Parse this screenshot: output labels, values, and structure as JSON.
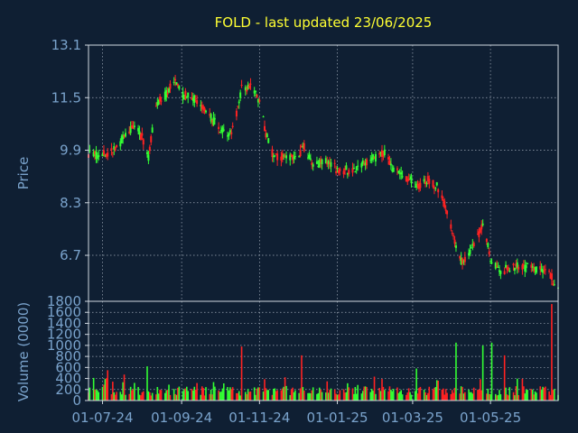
{
  "chart_data": {
    "type": "candlestick",
    "title": "FOLD - last updated 23/06/2025",
    "ylabel_price": "Price",
    "ylabel_volume": "Volume (0000)",
    "grid": true,
    "x_range": [
      "2024-06-20",
      "2025-06-23"
    ],
    "x_ticks": [
      {
        "label": "01-07-24",
        "date": "2024-07-01"
      },
      {
        "label": "01-09-24",
        "date": "2024-09-01"
      },
      {
        "label": "01-11-24",
        "date": "2024-11-01"
      },
      {
        "label": "01-01-25",
        "date": "2025-01-01"
      },
      {
        "label": "01-03-25",
        "date": "2025-03-01"
      },
      {
        "label": "01-05-25",
        "date": "2025-05-01"
      }
    ],
    "price_ylim": [
      5.3,
      13.1
    ],
    "price_ticks": [
      "13.1",
      "11.5",
      "9.9",
      "8.3",
      "6.7"
    ],
    "volume_ylim": [
      0,
      1800
    ],
    "volume_ticks": [
      "1800",
      "1600",
      "1400",
      "1200",
      "1000",
      "800",
      "600",
      "400",
      "200",
      "0"
    ],
    "up_color": "#33ff33",
    "down_color": "#ff2222",
    "price_anchors": [
      [
        "2024-06-20",
        9.8
      ],
      [
        "2024-07-01",
        9.75
      ],
      [
        "2024-07-10",
        9.9
      ],
      [
        "2024-07-20",
        10.4
      ],
      [
        "2024-07-26",
        10.6
      ],
      [
        "2024-08-01",
        10.3
      ],
      [
        "2024-08-06",
        9.7
      ],
      [
        "2024-08-12",
        11.3
      ],
      [
        "2024-08-20",
        11.6
      ],
      [
        "2024-08-26",
        12.0
      ],
      [
        "2024-09-01",
        11.6
      ],
      [
        "2024-09-10",
        11.5
      ],
      [
        "2024-09-20",
        11.1
      ],
      [
        "2024-09-30",
        10.6
      ],
      [
        "2024-10-08",
        10.4
      ],
      [
        "2024-10-12",
        10.6
      ],
      [
        "2024-10-18",
        11.8
      ],
      [
        "2024-10-26",
        11.8
      ],
      [
        "2024-11-01",
        11.4
      ],
      [
        "2024-11-06",
        10.4
      ],
      [
        "2024-11-12",
        9.7
      ],
      [
        "2024-11-20",
        9.7
      ],
      [
        "2024-12-01",
        9.75
      ],
      [
        "2024-12-06",
        10.0
      ],
      [
        "2024-12-14",
        9.4
      ],
      [
        "2024-12-24",
        9.6
      ],
      [
        "2025-01-01",
        9.3
      ],
      [
        "2025-01-08",
        9.3
      ],
      [
        "2025-01-12",
        9.2
      ],
      [
        "2025-01-20",
        9.5
      ],
      [
        "2025-02-01",
        9.7
      ],
      [
        "2025-02-08",
        9.8
      ],
      [
        "2025-02-14",
        9.3
      ],
      [
        "2025-02-28",
        9.0
      ],
      [
        "2025-03-06",
        8.8
      ],
      [
        "2025-03-14",
        9.0
      ],
      [
        "2025-03-20",
        8.8
      ],
      [
        "2025-03-24",
        8.5
      ],
      [
        "2025-03-30",
        7.8
      ],
      [
        "2025-04-04",
        6.9
      ],
      [
        "2025-04-08",
        6.5
      ],
      [
        "2025-04-15",
        6.8
      ],
      [
        "2025-04-22",
        7.3
      ],
      [
        "2025-04-25",
        7.7
      ],
      [
        "2025-05-01",
        6.6
      ],
      [
        "2025-05-08",
        6.2
      ],
      [
        "2025-05-15",
        6.3
      ],
      [
        "2025-05-22",
        6.4
      ],
      [
        "2025-06-01",
        6.3
      ],
      [
        "2025-06-10",
        6.25
      ],
      [
        "2025-06-16",
        6.2
      ],
      [
        "2025-06-20",
        5.85
      ],
      [
        "2025-06-23",
        5.8
      ]
    ],
    "volume_anchors": [
      [
        "2024-07-05",
        550
      ],
      [
        "2024-08-05",
        620
      ],
      [
        "2024-09-15",
        600
      ],
      [
        "2024-10-18",
        980
      ],
      [
        "2024-11-02",
        600
      ],
      [
        "2024-12-04",
        820
      ],
      [
        "2025-01-05",
        560
      ],
      [
        "2025-03-04",
        580
      ],
      [
        "2025-04-04",
        1050
      ],
      [
        "2025-04-25",
        1000
      ],
      [
        "2025-05-02",
        1050
      ],
      [
        "2025-05-12",
        820
      ],
      [
        "2025-06-18",
        1750
      ]
    ]
  }
}
